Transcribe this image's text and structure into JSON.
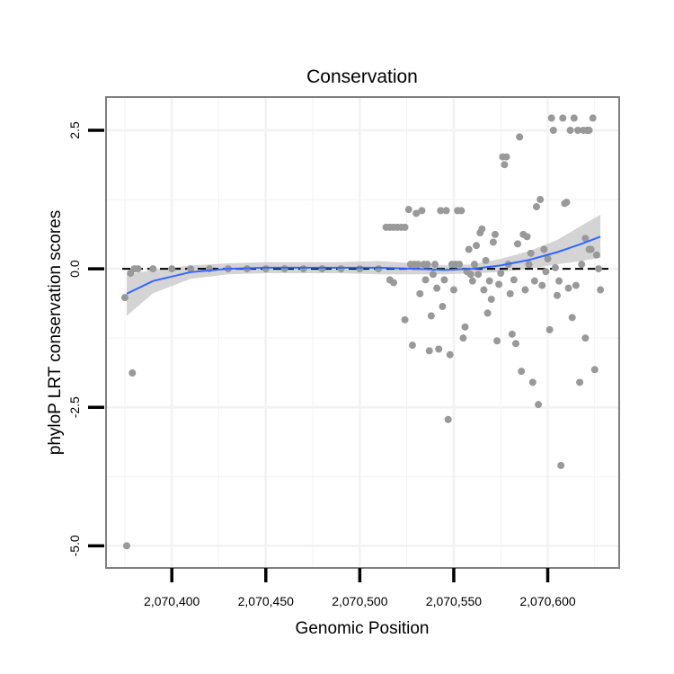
{
  "chart_data": {
    "type": "scatter",
    "title": "Conservation",
    "xlabel": "Genomic Position",
    "ylabel": "phyloP LRT conservation scores",
    "xlim": [
      2070365,
      2070638
    ],
    "ylim": [
      -5.4,
      3.1
    ],
    "x_ticks": [
      {
        "value": 2070400,
        "label": "2,070,400"
      },
      {
        "value": 2070450,
        "label": "2,070,450"
      },
      {
        "value": 2070500,
        "label": "2,070,500"
      },
      {
        "value": 2070550,
        "label": "2,070,550"
      },
      {
        "value": 2070600,
        "label": "2,070,600"
      }
    ],
    "y_ticks": [
      {
        "value": 2.5,
        "label": "2.5"
      },
      {
        "value": 0.0,
        "label": "0.0"
      },
      {
        "value": -2.5,
        "label": "-2.5"
      },
      {
        "value": -5.0,
        "label": "-5.0"
      }
    ],
    "reference_line": {
      "y": 0,
      "style": "dashed"
    },
    "colors": {
      "points": "#999999",
      "smooth": "#3366ff",
      "band": "#cccccc",
      "frame": "#7f7f7f",
      "grid": "#f2f2f2",
      "reference": "#000000"
    },
    "points": [
      [
        2070375,
        -0.52
      ],
      [
        2070376,
        -5.0
      ],
      [
        2070378,
        -0.08
      ],
      [
        2070379,
        -1.88
      ],
      [
        2070380,
        0.0
      ],
      [
        2070382,
        0.0
      ],
      [
        2070390,
        0.0
      ],
      [
        2070400,
        0.0
      ],
      [
        2070410,
        0.0
      ],
      [
        2070420,
        0.0
      ],
      [
        2070430,
        0.0
      ],
      [
        2070440,
        0.0
      ],
      [
        2070450,
        0.0
      ],
      [
        2070460,
        0.0
      ],
      [
        2070470,
        0.0
      ],
      [
        2070480,
        0.0
      ],
      [
        2070490,
        0.0
      ],
      [
        2070500,
        0.0
      ],
      [
        2070510,
        0.0
      ],
      [
        2070514,
        0.75
      ],
      [
        2070516,
        0.75
      ],
      [
        2070518,
        0.75
      ],
      [
        2070520,
        0.75
      ],
      [
        2070522,
        0.75
      ],
      [
        2070524,
        0.75
      ],
      [
        2070516,
        -0.2
      ],
      [
        2070518,
        -0.25
      ],
      [
        2070524,
        -0.92
      ],
      [
        2070526,
        1.07
      ],
      [
        2070527,
        0.08
      ],
      [
        2070528,
        -1.38
      ],
      [
        2070529,
        0.08
      ],
      [
        2070530,
        1.0
      ],
      [
        2070531,
        0.08
      ],
      [
        2070532,
        -0.45
      ],
      [
        2070533,
        1.05
      ],
      [
        2070534,
        0.08
      ],
      [
        2070535,
        -0.2
      ],
      [
        2070536,
        0.08
      ],
      [
        2070537,
        -1.48
      ],
      [
        2070538,
        -0.85
      ],
      [
        2070539,
        -0.1
      ],
      [
        2070540,
        0.08
      ],
      [
        2070541,
        -0.35
      ],
      [
        2070542,
        -1.45
      ],
      [
        2070543,
        1.05
      ],
      [
        2070544,
        -0.68
      ],
      [
        2070545,
        -0.2
      ],
      [
        2070546,
        1.05
      ],
      [
        2070547,
        -2.72
      ],
      [
        2070548,
        -1.55
      ],
      [
        2070549,
        0.08
      ],
      [
        2070550,
        -0.38
      ],
      [
        2070551,
        0.08
      ],
      [
        2070552,
        1.05
      ],
      [
        2070553,
        0.08
      ],
      [
        2070554,
        1.05
      ],
      [
        2070555,
        -1.25
      ],
      [
        2070556,
        -1.05
      ],
      [
        2070557,
        -0.05
      ],
      [
        2070558,
        0.35
      ],
      [
        2070559,
        -0.1
      ],
      [
        2070560,
        -0.22
      ],
      [
        2070561,
        0.08
      ],
      [
        2070562,
        0.42
      ],
      [
        2070563,
        -0.1
      ],
      [
        2070564,
        0.65
      ],
      [
        2070565,
        0.72
      ],
      [
        2070566,
        -0.38
      ],
      [
        2070567,
        0.15
      ],
      [
        2070568,
        -0.8
      ],
      [
        2070569,
        -0.22
      ],
      [
        2070570,
        -0.55
      ],
      [
        2070571,
        0.48
      ],
      [
        2070572,
        0.62
      ],
      [
        2070573,
        -1.3
      ],
      [
        2070574,
        -0.28
      ],
      [
        2070575,
        -0.08
      ],
      [
        2070576,
        2.02
      ],
      [
        2070577,
        1.88
      ],
      [
        2070578,
        2.02
      ],
      [
        2070579,
        0.08
      ],
      [
        2070580,
        -0.45
      ],
      [
        2070581,
        -1.18
      ],
      [
        2070582,
        -0.2
      ],
      [
        2070583,
        -1.35
      ],
      [
        2070584,
        0.45
      ],
      [
        2070585,
        2.38
      ],
      [
        2070586,
        -1.85
      ],
      [
        2070587,
        0.62
      ],
      [
        2070588,
        -0.38
      ],
      [
        2070589,
        0.58
      ],
      [
        2070590,
        0.08
      ],
      [
        2070591,
        0.28
      ],
      [
        2070592,
        -2.05
      ],
      [
        2070593,
        -0.22
      ],
      [
        2070594,
        1.12
      ],
      [
        2070595,
        -2.45
      ],
      [
        2070596,
        1.25
      ],
      [
        2070597,
        -0.3
      ],
      [
        2070598,
        0.35
      ],
      [
        2070599,
        -0.05
      ],
      [
        2070600,
        0.18
      ],
      [
        2070601,
        -1.1
      ],
      [
        2070602,
        2.72
      ],
      [
        2070603,
        2.5
      ],
      [
        2070604,
        0.02
      ],
      [
        2070605,
        -0.48
      ],
      [
        2070606,
        -0.22
      ],
      [
        2070607,
        -3.55
      ],
      [
        2070608,
        2.72
      ],
      [
        2070609,
        1.18
      ],
      [
        2070610,
        1.2
      ],
      [
        2070611,
        -0.35
      ],
      [
        2070612,
        2.5
      ],
      [
        2070613,
        -0.88
      ],
      [
        2070614,
        2.72
      ],
      [
        2070615,
        -0.3
      ],
      [
        2070616,
        2.5
      ],
      [
        2070617,
        -2.05
      ],
      [
        2070618,
        0.08
      ],
      [
        2070619,
        2.5
      ],
      [
        2070620,
        -1.25
      ],
      [
        2070621,
        2.5
      ],
      [
        2070622,
        0.35
      ],
      [
        2070623,
        0.35
      ],
      [
        2070624,
        2.72
      ],
      [
        2070625,
        -1.82
      ],
      [
        2070626,
        0.25
      ],
      [
        2070627,
        0.0
      ],
      [
        2070628,
        -0.38
      ],
      [
        2070620,
        0.55
      ],
      [
        2070622,
        2.5
      ]
    ],
    "smooth_line": [
      [
        2070376,
        -0.45
      ],
      [
        2070390,
        -0.22
      ],
      [
        2070410,
        -0.06
      ],
      [
        2070430,
        0.0
      ],
      [
        2070450,
        0.02
      ],
      [
        2070470,
        0.02
      ],
      [
        2070490,
        0.02
      ],
      [
        2070510,
        0.02
      ],
      [
        2070530,
        0.0
      ],
      [
        2070545,
        -0.02
      ],
      [
        2070560,
        0.0
      ],
      [
        2070575,
        0.06
      ],
      [
        2070590,
        0.16
      ],
      [
        2070605,
        0.3
      ],
      [
        2070618,
        0.45
      ],
      [
        2070628,
        0.58
      ]
    ],
    "band_upper": [
      [
        2070376,
        -0.1
      ],
      [
        2070390,
        -0.02
      ],
      [
        2070410,
        0.06
      ],
      [
        2070430,
        0.1
      ],
      [
        2070450,
        0.12
      ],
      [
        2070470,
        0.12
      ],
      [
        2070490,
        0.12
      ],
      [
        2070510,
        0.14
      ],
      [
        2070530,
        0.1
      ],
      [
        2070545,
        0.06
      ],
      [
        2070560,
        0.08
      ],
      [
        2070575,
        0.18
      ],
      [
        2070590,
        0.32
      ],
      [
        2070605,
        0.52
      ],
      [
        2070618,
        0.78
      ],
      [
        2070628,
        0.98
      ]
    ],
    "band_lower": [
      [
        2070376,
        -0.85
      ],
      [
        2070390,
        -0.44
      ],
      [
        2070410,
        -0.18
      ],
      [
        2070430,
        -0.1
      ],
      [
        2070450,
        -0.08
      ],
      [
        2070470,
        -0.08
      ],
      [
        2070490,
        -0.08
      ],
      [
        2070510,
        -0.1
      ],
      [
        2070530,
        -0.1
      ],
      [
        2070545,
        -0.1
      ],
      [
        2070560,
        -0.08
      ],
      [
        2070575,
        -0.06
      ],
      [
        2070590,
        0.0
      ],
      [
        2070605,
        0.08
      ],
      [
        2070618,
        0.14
      ],
      [
        2070628,
        0.2
      ]
    ]
  }
}
